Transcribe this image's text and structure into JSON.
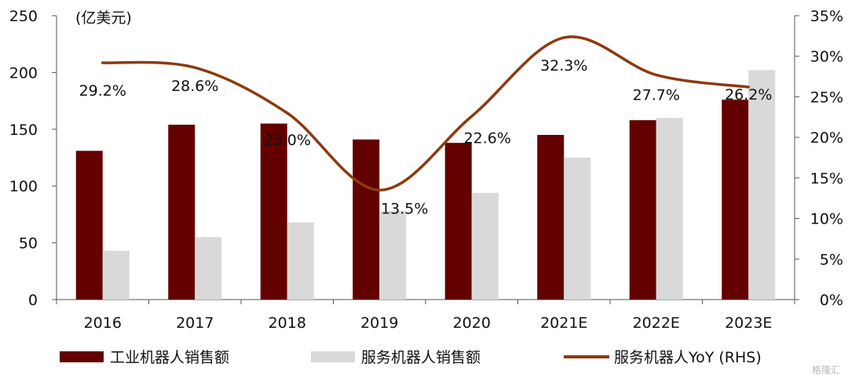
{
  "chart_data": {
    "type": "bar",
    "unit_label": "(亿美元)",
    "categories": [
      "2016",
      "2017",
      "2018",
      "2019",
      "2020",
      "2021E",
      "2022E",
      "2023E"
    ],
    "series": [
      {
        "name": "工业机器人销售额",
        "type": "bar",
        "axis": "left",
        "values": [
          131,
          154,
          155,
          141,
          138,
          145,
          158,
          176
        ],
        "color": "#630000"
      },
      {
        "name": "服务机器人销售额",
        "type": "bar",
        "axis": "left",
        "values": [
          43,
          55,
          68,
          78,
          94,
          125,
          160,
          202
        ],
        "color": "#d9d9d9"
      },
      {
        "name": "服务机器人YoY (RHS)",
        "type": "line",
        "axis": "right",
        "values": [
          29.2,
          28.6,
          23.0,
          13.5,
          22.6,
          32.3,
          27.7,
          26.2
        ],
        "color": "#8b3a0f",
        "data_labels": [
          "29.2%",
          "28.6%",
          "23.0%",
          "13.5%",
          "22.6%",
          "32.3%",
          "27.7%",
          "26.2%"
        ]
      }
    ],
    "y_left": {
      "ylim": [
        0,
        250
      ],
      "ticks": [
        "0",
        "50",
        "100",
        "150",
        "200",
        "250"
      ]
    },
    "y_right": {
      "ylim": [
        0,
        35
      ],
      "ticks": [
        "0%",
        "5%",
        "10%",
        "15%",
        "20%",
        "25%",
        "30%",
        "35%"
      ]
    },
    "legend": {
      "placement": "bottom"
    },
    "grid": false
  },
  "watermark": "格隆汇"
}
